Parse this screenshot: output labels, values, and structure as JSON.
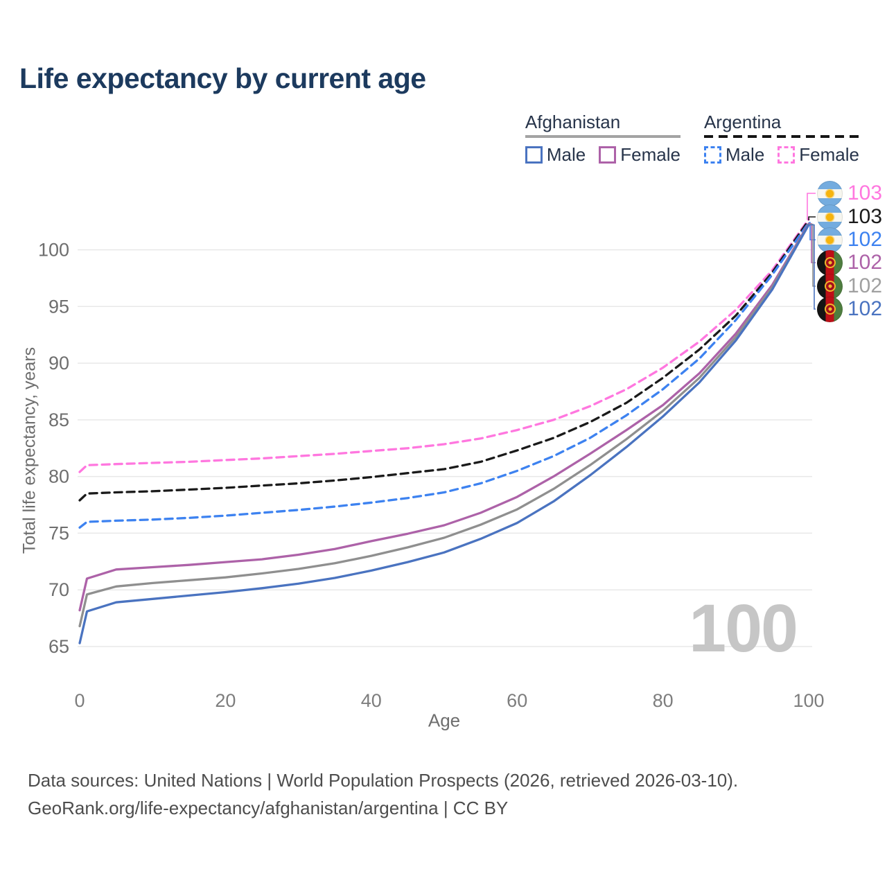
{
  "title": "Life expectancy by current age",
  "legend": {
    "groups": [
      {
        "title": "Afghanistan",
        "line_style": "solid",
        "underline_color": "#a3a3a3",
        "items": [
          {
            "label": "Male",
            "color": "#4a73c0",
            "dashed": false
          },
          {
            "label": "Female",
            "color": "#ad62a8",
            "dashed": false
          }
        ]
      },
      {
        "title": "Argentina",
        "line_style": "dashed",
        "underline_color": "#151515",
        "items": [
          {
            "label": "Male",
            "color": "#3d82f0",
            "dashed": true
          },
          {
            "label": "Female",
            "color": "#ff77df",
            "dashed": true
          }
        ]
      }
    ]
  },
  "chart_data": {
    "type": "line",
    "title": "Life expectancy by current age",
    "xlabel": "Age",
    "ylabel": "Total life expectancy, years",
    "xlim": [
      0,
      100
    ],
    "ylim": [
      65,
      100
    ],
    "xticks": [
      0,
      20,
      40,
      60,
      80,
      100
    ],
    "yticks": [
      65,
      70,
      75,
      80,
      85,
      90,
      95,
      100
    ],
    "grid": "horizontal",
    "x": [
      0,
      1,
      5,
      10,
      15,
      20,
      25,
      30,
      35,
      40,
      45,
      50,
      55,
      60,
      65,
      70,
      75,
      80,
      85,
      90,
      95,
      100
    ],
    "series": [
      {
        "name": "Argentina — Female",
        "country": "Argentina",
        "sex": "Female",
        "color": "#ff77df",
        "dashed": true,
        "values": [
          80.4,
          81.0,
          81.1,
          81.2,
          81.3,
          81.45,
          81.6,
          81.8,
          82.0,
          82.25,
          82.5,
          82.85,
          83.35,
          84.1,
          85.0,
          86.2,
          87.7,
          89.6,
          91.9,
          94.7,
          98.2,
          102.7
        ]
      },
      {
        "name": "Argentina — Both sexes",
        "country": "Argentina",
        "sex": "All",
        "color": "#1a1a1a",
        "dashed": true,
        "values": [
          77.9,
          78.5,
          78.6,
          78.7,
          78.85,
          79.0,
          79.2,
          79.4,
          79.65,
          79.95,
          80.3,
          80.65,
          81.3,
          82.3,
          83.4,
          84.8,
          86.5,
          88.7,
          91.2,
          94.2,
          98.0,
          102.6
        ]
      },
      {
        "name": "Argentina — Male",
        "country": "Argentina",
        "sex": "Male",
        "color": "#3d82f0",
        "dashed": true,
        "values": [
          75.5,
          76.0,
          76.1,
          76.2,
          76.35,
          76.55,
          76.8,
          77.05,
          77.35,
          77.7,
          78.1,
          78.6,
          79.4,
          80.5,
          81.8,
          83.4,
          85.4,
          87.7,
          90.4,
          93.8,
          97.8,
          102.4
        ]
      },
      {
        "name": "Afghanistan — Female",
        "country": "Afghanistan",
        "sex": "Female",
        "color": "#ad62a8",
        "dashed": false,
        "values": [
          68.2,
          71.0,
          71.8,
          72.0,
          72.2,
          72.45,
          72.7,
          73.1,
          73.6,
          74.3,
          74.95,
          75.7,
          76.8,
          78.2,
          80.0,
          82.0,
          84.1,
          86.3,
          89.1,
          92.6,
          96.9,
          102.3
        ]
      },
      {
        "name": "Afghanistan — Both sexes",
        "country": "Afghanistan",
        "sex": "All",
        "color": "#8f8f8f",
        "dashed": false,
        "values": [
          66.8,
          69.6,
          70.3,
          70.6,
          70.85,
          71.1,
          71.45,
          71.85,
          72.35,
          73.0,
          73.75,
          74.6,
          75.75,
          77.1,
          78.9,
          81.0,
          83.3,
          85.8,
          88.7,
          92.3,
          96.7,
          102.25
        ]
      },
      {
        "name": "Afghanistan — Male",
        "country": "Afghanistan",
        "sex": "Male",
        "color": "#4a73c0",
        "dashed": false,
        "values": [
          65.3,
          68.1,
          68.9,
          69.2,
          69.5,
          69.8,
          70.15,
          70.55,
          71.05,
          71.7,
          72.45,
          73.3,
          74.5,
          75.9,
          77.8,
          80.1,
          82.6,
          85.3,
          88.3,
          92.0,
          96.5,
          102.2
        ]
      }
    ]
  },
  "end_labels": [
    {
      "value": "103",
      "color": "#ff77df",
      "flag": "ar",
      "flag_name": "argentina-flag-icon"
    },
    {
      "value": "103",
      "color": "#1a1a1a",
      "flag": "ar",
      "flag_name": "argentina-flag-icon"
    },
    {
      "value": "102",
      "color": "#3d82f0",
      "flag": "ar",
      "flag_name": "argentina-flag-icon"
    },
    {
      "value": "102",
      "color": "#ad62a8",
      "flag": "af",
      "flag_name": "afghanistan-flag-icon"
    },
    {
      "value": "102",
      "color": "#a0a0a0",
      "flag": "af",
      "flag_name": "afghanistan-flag-icon"
    },
    {
      "value": "102",
      "color": "#4a73c0",
      "flag": "af",
      "flag_name": "afghanistan-flag-icon"
    }
  ],
  "watermark": "100",
  "footer": {
    "line1": "Data sources: United Nations | World Population Prospects (2026, retrieved 2026-03-10).",
    "line2": "GeoRank.org/life-expectancy/afghanistan/argentina | CC BY"
  }
}
